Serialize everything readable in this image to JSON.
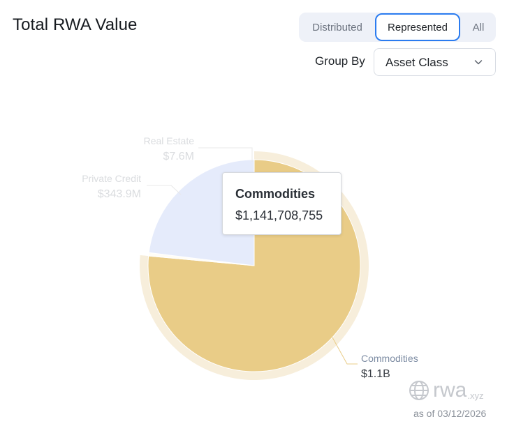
{
  "header": {
    "title": "Total RWA Value"
  },
  "view_toggle": {
    "options": [
      "Distributed",
      "Represented",
      "All"
    ],
    "selected": "Represented"
  },
  "group_by": {
    "label": "Group By",
    "value": "Asset Class"
  },
  "tooltip": {
    "title": "Commodities",
    "value": "$1,141,708,755"
  },
  "colors": {
    "commodities": "#e9cc87",
    "commodities_ring": "#f7eedb",
    "private_credit": "#e5ebfb",
    "real_estate": "#fffdf6",
    "accent": "#2b7cf0"
  },
  "icons": {
    "group_by_toggle": "chevron-down-icon",
    "brand_logo": "globe-icon"
  },
  "chart_data": {
    "type": "pie",
    "start_at": "12 o'clock",
    "hovered": "Commodities",
    "slices": [
      {
        "name": "Commodities",
        "value": 1141708755,
        "label": "$1.1B"
      },
      {
        "name": "Real Estate",
        "value": 7600000,
        "label": "$7.6M"
      },
      {
        "name": "Private Credit",
        "value": 343900000,
        "label": "$343.9M"
      }
    ]
  },
  "brand": {
    "name": "rwa",
    "suffix": ".xyz"
  },
  "footer": {
    "as_of": "as of 03/12/2026"
  }
}
